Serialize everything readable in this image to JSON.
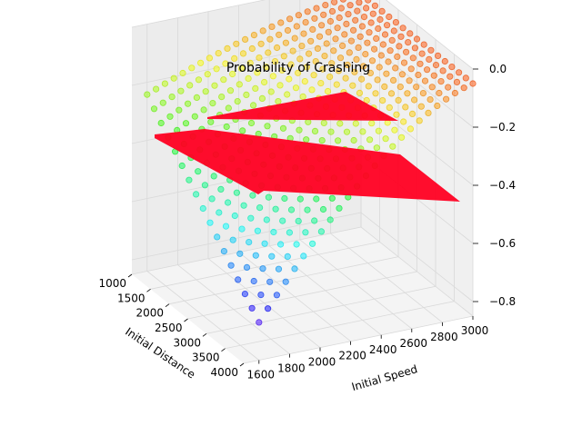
{
  "chart_data": {
    "type": "scatter",
    "title": "Probability of Crashing",
    "xlabel": "Initial Distance",
    "ylabel": "Initial Speed",
    "zlabel": "",
    "x_ticks": [
      "1000",
      "1500",
      "2000",
      "2500",
      "3000",
      "3500",
      "4000"
    ],
    "y_ticks": [
      "1600",
      "1800",
      "2000",
      "2200",
      "2400",
      "2600",
      "2800",
      "3000"
    ],
    "z_ticks": [
      "0.0",
      "−0.2",
      "−0.4",
      "−0.6",
      "−0.8"
    ],
    "xlim": [
      1000,
      4000
    ],
    "ylim": [
      1500,
      3000
    ],
    "zlim": [
      -0.85,
      0.0
    ],
    "colormap": "hsv",
    "marker_alpha": 0.5,
    "grid": true,
    "legend": "none",
    "colors": {
      "pane": "#f2f2f2",
      "grid": "#d9d9d9",
      "surface": "#ff0022"
    }
  }
}
